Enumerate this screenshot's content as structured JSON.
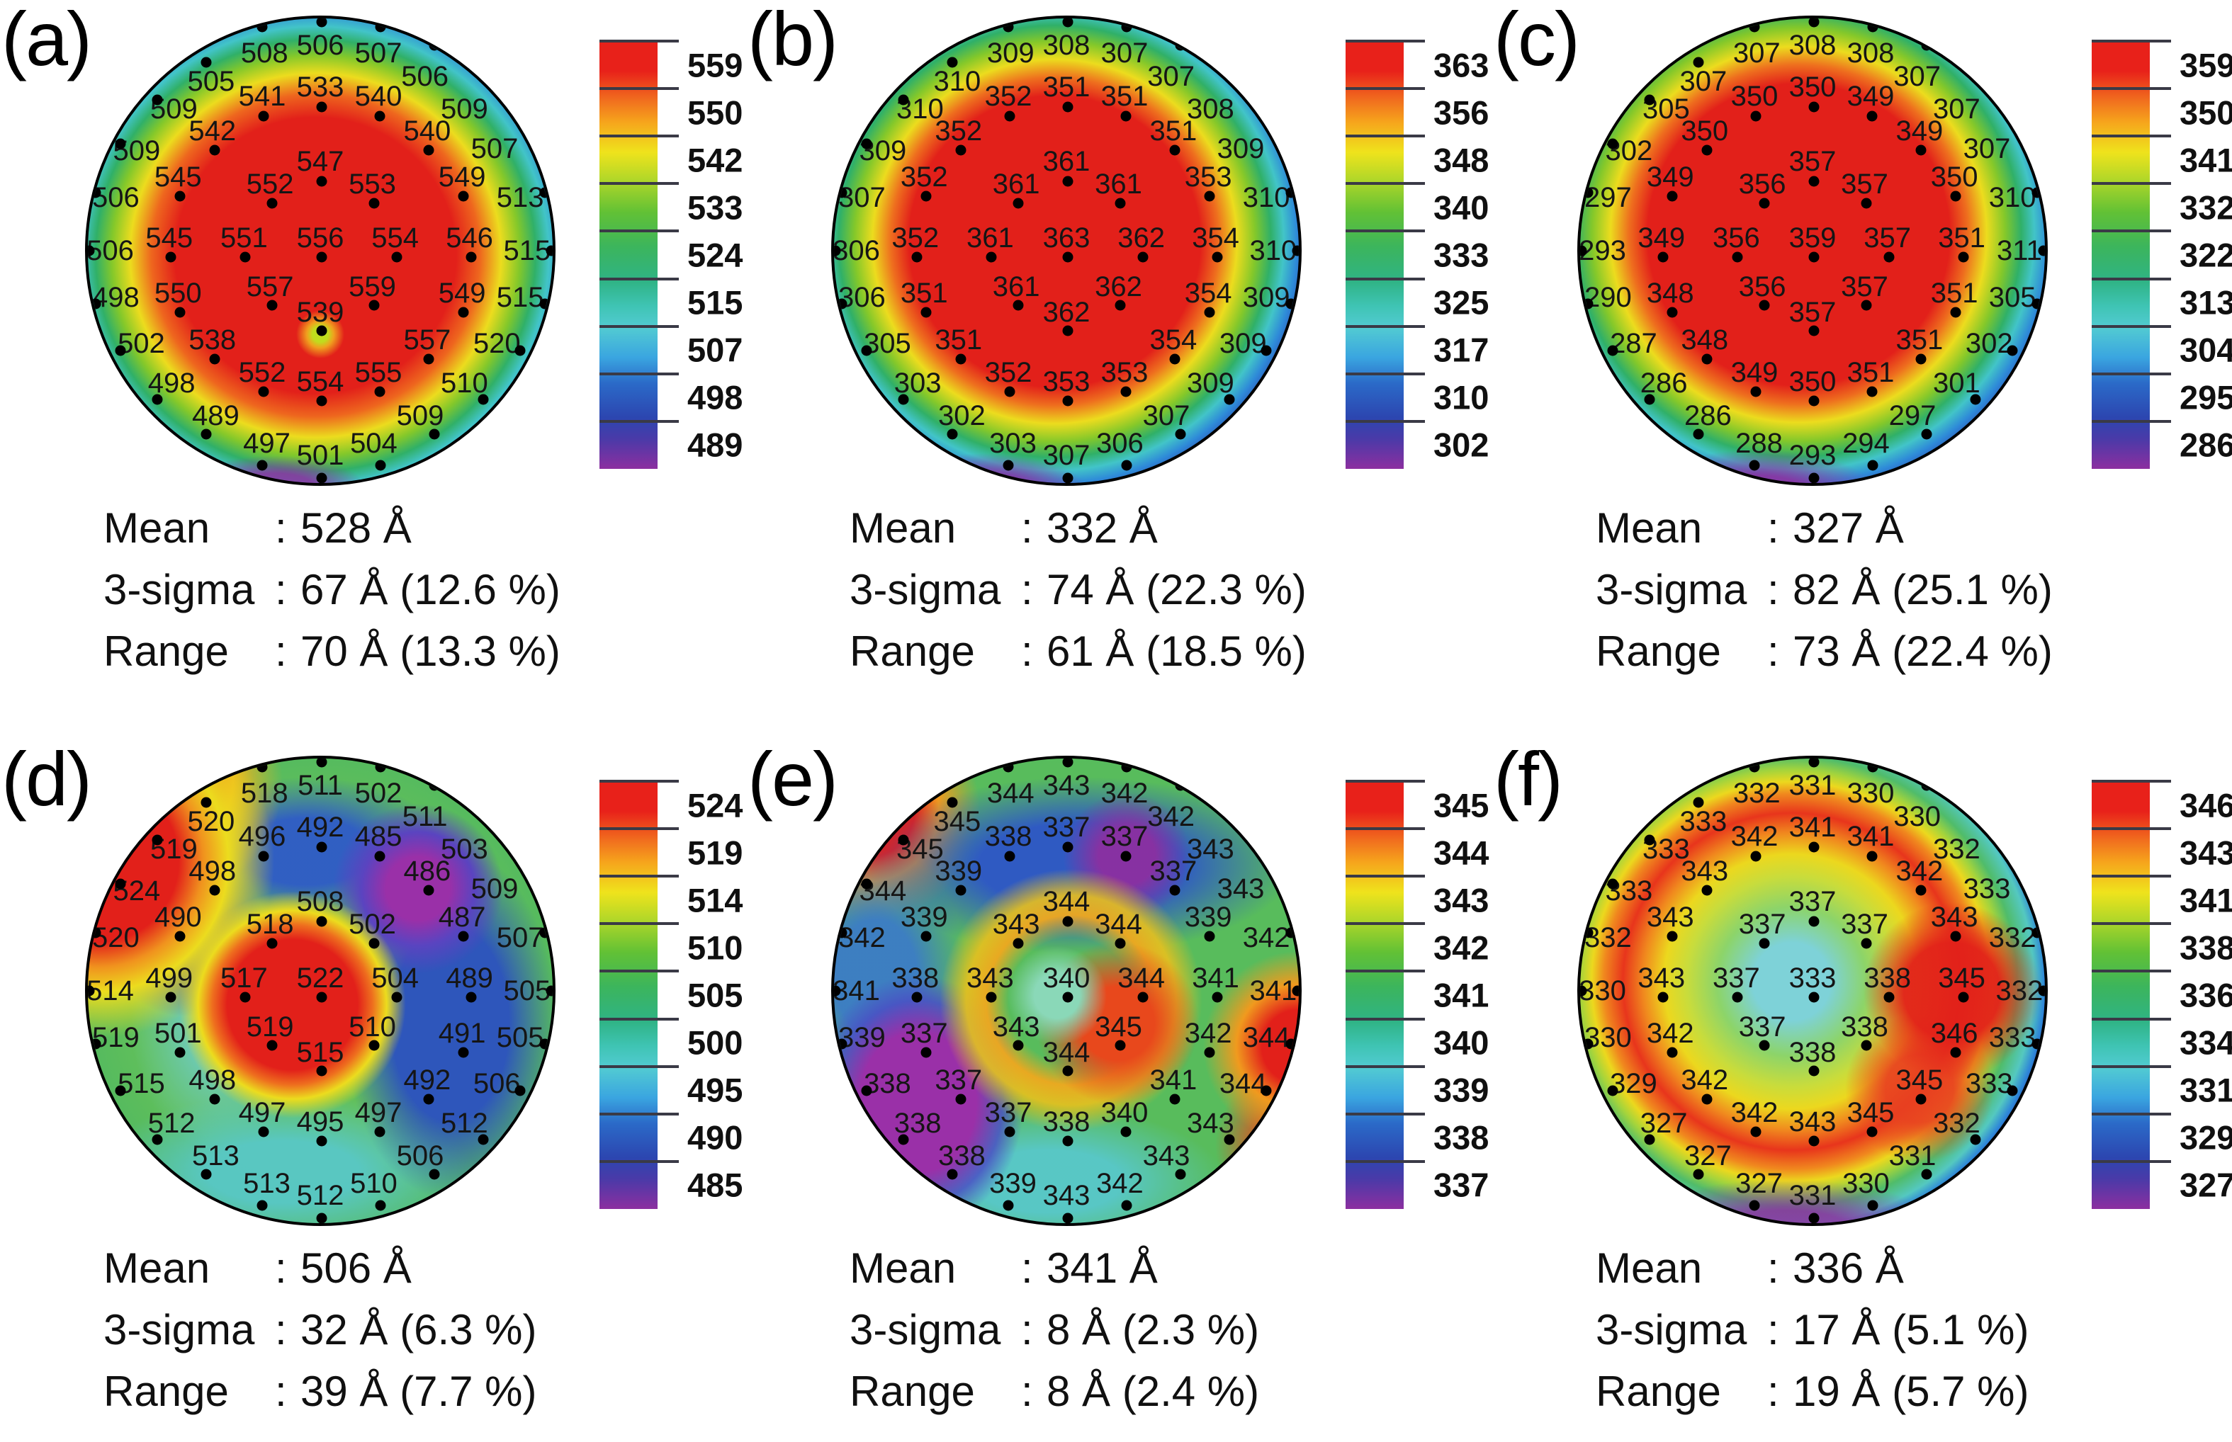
{
  "figure": {
    "background": "#ffffff"
  },
  "colorbar_scale_colors": [
    "#e8211a",
    "#f1701e",
    "#efe31c",
    "#62c135",
    "#2fb384",
    "#52cbd2",
    "#3aa5e0",
    "#2c46b0",
    "#8c2fa0"
  ],
  "measurement_grid": [
    [
      37.5,
      1.8,
      38,
      7.5
    ],
    [
      50.3,
      0.8,
      50,
      5.8
    ],
    [
      63,
      1.8,
      62.5,
      7.5
    ],
    [
      74.5,
      5.8,
      72.5,
      12.5
    ],
    [
      85,
      12.8,
      81,
      19.5
    ],
    [
      93,
      22,
      87.5,
      28
    ],
    [
      98.3,
      37.5,
      93,
      38.5
    ],
    [
      99.7,
      50,
      94.5,
      50
    ],
    [
      98.3,
      61.5,
      93,
      60
    ],
    [
      93,
      71.5,
      88,
      70
    ],
    [
      85,
      82,
      81,
      78.5
    ],
    [
      74.5,
      89.5,
      71.5,
      85.5
    ],
    [
      63,
      96.2,
      61.5,
      91.5
    ],
    [
      50.3,
      99,
      50,
      94
    ],
    [
      37.5,
      96.2,
      38.5,
      91.5
    ],
    [
      25.5,
      89.5,
      27.5,
      85.5
    ],
    [
      15,
      82,
      18,
      78.5
    ],
    [
      7,
      71.5,
      11.5,
      70
    ],
    [
      1.7,
      61.5,
      6,
      60
    ],
    [
      0.3,
      50,
      4.8,
      50
    ],
    [
      1.7,
      37.5,
      6,
      38.5
    ],
    [
      7,
      27,
      10.5,
      28.5
    ],
    [
      15,
      17.5,
      18.5,
      19.5
    ],
    [
      25.5,
      9.5,
      26.5,
      13.5
    ],
    [
      37.8,
      21,
      37.5,
      16.8
    ],
    [
      50.3,
      19,
      50,
      14.8
    ],
    [
      62.8,
      21,
      62.5,
      16.8
    ],
    [
      27.3,
      28.3,
      26.8,
      24.2
    ],
    [
      73.3,
      28.3,
      73,
      24.2
    ],
    [
      19.8,
      38.3,
      19.4,
      34.2
    ],
    [
      50.3,
      35,
      50,
      30.8
    ],
    [
      80.8,
      38.3,
      80.5,
      34.2
    ],
    [
      39.6,
      39.8,
      39.2,
      35.7
    ],
    [
      61.6,
      39.8,
      61.2,
      35.7
    ],
    [
      17.8,
      51.3,
      17.5,
      47.2
    ],
    [
      33.9,
      51.3,
      33.6,
      47.2
    ],
    [
      50.3,
      51.3,
      50,
      47.2
    ],
    [
      66.4,
      51.3,
      66.1,
      47.2
    ],
    [
      82.4,
      51.3,
      82.1,
      47.2
    ],
    [
      19.8,
      63.3,
      19.4,
      59.2
    ],
    [
      39.6,
      61.8,
      39.2,
      57.7
    ],
    [
      61.6,
      61.8,
      61.2,
      57.7
    ],
    [
      80.8,
      63.3,
      80.5,
      59.2
    ],
    [
      50.3,
      67.3,
      50,
      63.2
    ],
    [
      27.3,
      73.3,
      26.8,
      69.2
    ],
    [
      73.3,
      73.3,
      73,
      69.2
    ],
    [
      37.8,
      80.3,
      37.5,
      76.2
    ],
    [
      50.3,
      82.3,
      50,
      78.2
    ],
    [
      62.8,
      80.3,
      62.5,
      76.2
    ]
  ],
  "chart_data": [
    {
      "type": "heatmap",
      "panel": "(a)",
      "unit": "Å",
      "colorbar_ticks": [
        559,
        550,
        542,
        533,
        524,
        515,
        507,
        498,
        489
      ],
      "values": [
        508,
        506,
        507,
        506,
        509,
        507,
        513,
        515,
        515,
        520,
        510,
        509,
        504,
        501,
        497,
        489,
        498,
        502,
        498,
        506,
        506,
        509,
        509,
        505,
        541,
        533,
        540,
        542,
        540,
        545,
        547,
        549,
        552,
        553,
        545,
        551,
        556,
        554,
        546,
        550,
        557,
        559,
        549,
        539,
        538,
        557,
        552,
        554,
        555
      ],
      "stats": {
        "rows": [
          [
            "Mean",
            ":",
            "528 Å"
          ],
          [
            "3-sigma",
            ":",
            "67 Å (12.6 %)"
          ],
          [
            "Range",
            ":",
            "70 Å (13.3 %)"
          ]
        ]
      }
    },
    {
      "type": "heatmap",
      "panel": "(b)",
      "unit": "Å",
      "colorbar_ticks": [
        363,
        356,
        348,
        340,
        333,
        325,
        317,
        310,
        302
      ],
      "values": [
        309,
        308,
        307,
        307,
        308,
        309,
        310,
        310,
        309,
        309,
        309,
        307,
        306,
        307,
        303,
        302,
        303,
        305,
        306,
        306,
        307,
        309,
        310,
        310,
        352,
        351,
        351,
        352,
        351,
        352,
        361,
        353,
        361,
        361,
        352,
        361,
        363,
        362,
        354,
        351,
        361,
        362,
        354,
        362,
        351,
        354,
        352,
        353,
        353
      ],
      "stats": {
        "rows": [
          [
            "Mean",
            ":",
            "332 Å"
          ],
          [
            "3-sigma",
            ":",
            "74 Å (22.3 %)"
          ],
          [
            "Range",
            ":",
            "61 Å (18.5 %)"
          ]
        ]
      }
    },
    {
      "type": "heatmap",
      "panel": "(c)",
      "unit": "Å",
      "colorbar_ticks": [
        359,
        350,
        341,
        332,
        322,
        313,
        304,
        295,
        286
      ],
      "values": [
        307,
        308,
        308,
        307,
        307,
        307,
        310,
        311,
        305,
        302,
        301,
        297,
        294,
        293,
        288,
        286,
        286,
        287,
        290,
        293,
        297,
        302,
        305,
        307,
        350,
        350,
        349,
        350,
        349,
        349,
        357,
        350,
        356,
        357,
        349,
        356,
        359,
        357,
        351,
        348,
        356,
        357,
        351,
        357,
        348,
        351,
        349,
        350,
        351
      ],
      "stats": {
        "rows": [
          [
            "Mean",
            ":",
            "327 Å"
          ],
          [
            "3-sigma",
            ":",
            "82 Å (25.1 %)"
          ],
          [
            "Range",
            ":",
            "73 Å (22.4 %)"
          ]
        ]
      }
    },
    {
      "type": "heatmap",
      "panel": "(d)",
      "unit": "Å",
      "colorbar_ticks": [
        524,
        519,
        514,
        510,
        505,
        500,
        495,
        490,
        485
      ],
      "values": [
        518,
        511,
        502,
        511,
        503,
        509,
        507,
        505,
        505,
        506,
        512,
        506,
        510,
        512,
        513,
        513,
        512,
        515,
        519,
        514,
        520,
        524,
        519,
        520,
        496,
        492,
        485,
        498,
        486,
        490,
        508,
        487,
        518,
        502,
        499,
        517,
        522,
        504,
        489,
        501,
        519,
        510,
        491,
        515,
        498,
        492,
        497,
        495,
        497
      ],
      "stats": {
        "rows": [
          [
            "Mean",
            ":",
            "506 Å"
          ],
          [
            "3-sigma",
            ":",
            "32 Å (6.3 %)"
          ],
          [
            "Range",
            ":",
            "39 Å (7.7 %)"
          ]
        ]
      }
    },
    {
      "type": "heatmap",
      "panel": "(e)",
      "unit": "Å",
      "colorbar_ticks": [
        345,
        344,
        343,
        342,
        341,
        340,
        339,
        338,
        337
      ],
      "values": [
        344,
        343,
        342,
        342,
        343,
        343,
        342,
        341,
        344,
        344,
        343,
        343,
        342,
        343,
        339,
        338,
        338,
        338,
        339,
        341,
        342,
        344,
        345,
        345,
        338,
        337,
        337,
        339,
        337,
        339,
        344,
        339,
        343,
        344,
        338,
        343,
        340,
        344,
        341,
        337,
        343,
        345,
        342,
        344,
        337,
        341,
        337,
        338,
        340
      ],
      "stats": {
        "rows": [
          [
            "Mean",
            ":",
            "341 Å"
          ],
          [
            "3-sigma",
            ":",
            "8 Å (2.3 %)"
          ],
          [
            "Range",
            ":",
            "8 Å (2.4 %)"
          ]
        ]
      }
    },
    {
      "type": "heatmap",
      "panel": "(f)",
      "unit": "Å",
      "colorbar_ticks": [
        346,
        343,
        341,
        338,
        336,
        334,
        331,
        329,
        327
      ],
      "values": [
        332,
        331,
        330,
        330,
        332,
        333,
        332,
        332,
        333,
        333,
        332,
        331,
        330,
        331,
        327,
        327,
        327,
        329,
        330,
        330,
        332,
        333,
        333,
        333,
        342,
        341,
        341,
        343,
        342,
        343,
        337,
        343,
        337,
        337,
        343,
        337,
        333,
        338,
        345,
        342,
        337,
        338,
        346,
        338,
        342,
        345,
        342,
        343,
        345
      ],
      "stats": {
        "rows": [
          [
            "Mean",
            ":",
            "336 Å"
          ],
          [
            "3-sigma",
            ":",
            "17 Å (5.1 %)"
          ],
          [
            "Range",
            ":",
            "19 Å (5.7 %)"
          ]
        ]
      }
    }
  ]
}
